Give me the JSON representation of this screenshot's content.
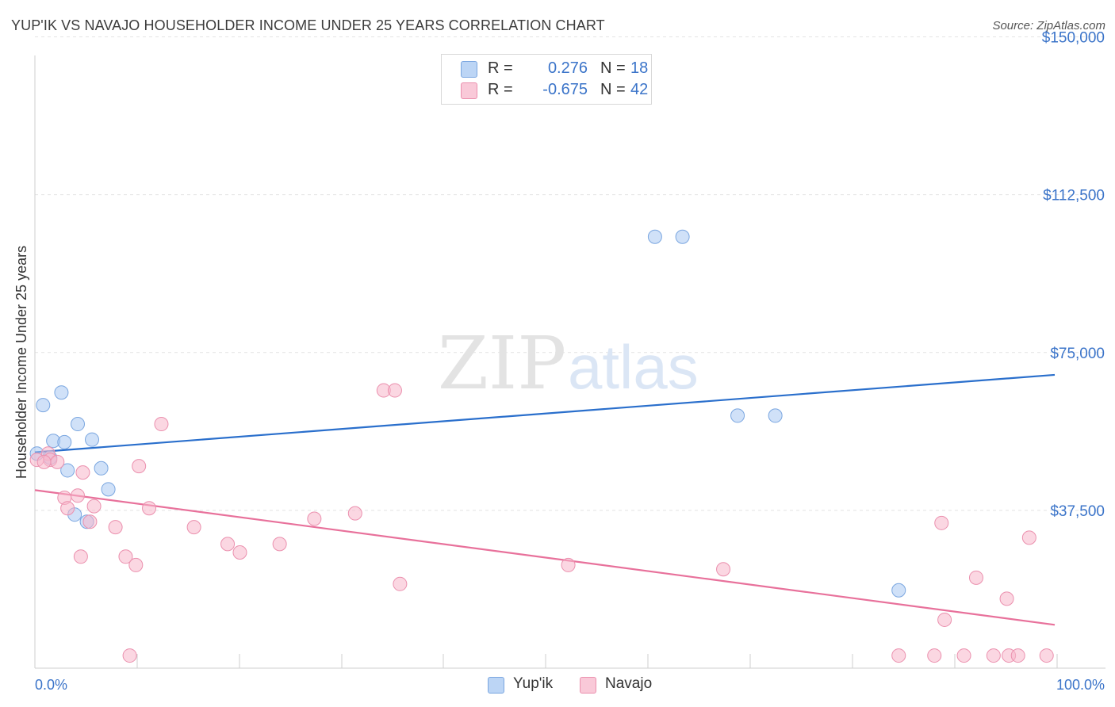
{
  "header": {
    "title": "YUP'IK VS NAVAJO HOUSEHOLDER INCOME UNDER 25 YEARS CORRELATION CHART",
    "source": "Source: ZipAtlas.com"
  },
  "watermark": {
    "zip": "ZIP",
    "atlas": "atlas"
  },
  "legend": {
    "rows": [
      {
        "r_label": "R =",
        "r_value": "0.276",
        "n_label": "N =",
        "n_value": "18",
        "color": "#a9c8f2"
      },
      {
        "r_label": "R =",
        "r_value": "-0.675",
        "n_label": "N =",
        "n_value": "42",
        "color": "#f7b7cb"
      }
    ]
  },
  "bottom_legend": [
    {
      "label": "Yup'ik",
      "color": "#a9c8f2"
    },
    {
      "label": "Navajo",
      "color": "#f7b7cb"
    }
  ],
  "chart_data": {
    "type": "scatter",
    "title": "YUP'IK VS NAVAJO HOUSEHOLDER INCOME UNDER 25 YEARS CORRELATION CHART",
    "xlabel": "",
    "ylabel": "Householder Income Under 25 years",
    "xlim": [
      0,
      100
    ],
    "ylim": [
      0,
      155000
    ],
    "x_tick_labels": [
      "0.0%",
      "100.0%"
    ],
    "y_ticks": [
      {
        "value": 150000,
        "label": "$150,000"
      },
      {
        "value": 112500,
        "label": "$112,500"
      },
      {
        "value": 75000,
        "label": "$75,000"
      },
      {
        "value": 37500,
        "label": "$37,500"
      }
    ],
    "grid": true,
    "legend_placement": "top-center",
    "series": [
      {
        "name": "Yup'ik",
        "color": "#a9c8f2",
        "stroke": "#7aa6e0",
        "line_color": "#2a6fcc",
        "points": [
          [
            0.2,
            51000
          ],
          [
            0.8,
            62500
          ],
          [
            1.5,
            50000
          ],
          [
            1.8,
            54000
          ],
          [
            2.6,
            65500
          ],
          [
            2.9,
            53700
          ],
          [
            3.2,
            47000
          ],
          [
            3.9,
            36500
          ],
          [
            4.2,
            58000
          ],
          [
            5.1,
            34800
          ],
          [
            5.6,
            54300
          ],
          [
            6.5,
            47500
          ],
          [
            7.2,
            42500
          ],
          [
            60.8,
            102500
          ],
          [
            63.5,
            102500
          ],
          [
            68.9,
            60000
          ],
          [
            72.6,
            60000
          ],
          [
            84.7,
            18500
          ]
        ],
        "trend": {
          "x0": 0,
          "y0": 51300,
          "x1": 100,
          "y1": 69700
        }
      },
      {
        "name": "Navajo",
        "color": "#f7b7cb",
        "stroke": "#eb90ae",
        "line_color": "#e8719b",
        "points": [
          [
            0.2,
            49500
          ],
          [
            1.3,
            51000
          ],
          [
            1.5,
            49500
          ],
          [
            2.2,
            49000
          ],
          [
            2.9,
            40500
          ],
          [
            3.2,
            38000
          ],
          [
            4.2,
            41000
          ],
          [
            4.7,
            46500
          ],
          [
            4.5,
            26500
          ],
          [
            5.4,
            34800
          ],
          [
            5.8,
            38500
          ],
          [
            7.9,
            33500
          ],
          [
            8.9,
            26500
          ],
          [
            9.3,
            3000
          ],
          [
            9.9,
            24500
          ],
          [
            10.2,
            48000
          ],
          [
            11.2,
            38000
          ],
          [
            12.4,
            58000
          ],
          [
            15.6,
            33500
          ],
          [
            18.9,
            29500
          ],
          [
            20.1,
            27500
          ],
          [
            24.0,
            29500
          ],
          [
            27.4,
            35500
          ],
          [
            31.4,
            36800
          ],
          [
            34.2,
            66000
          ],
          [
            35.3,
            66000
          ],
          [
            35.8,
            20000
          ],
          [
            52.3,
            24500
          ],
          [
            67.5,
            23500
          ],
          [
            84.7,
            3000
          ],
          [
            88.2,
            3000
          ],
          [
            88.9,
            34500
          ],
          [
            89.2,
            11500
          ],
          [
            91.1,
            3000
          ],
          [
            92.3,
            21500
          ],
          [
            94.0,
            3000
          ],
          [
            95.3,
            16500
          ],
          [
            95.5,
            3000
          ],
          [
            96.4,
            3000
          ],
          [
            97.5,
            31000
          ],
          [
            99.2,
            3000
          ],
          [
            0.9,
            49000
          ]
        ],
        "trend": {
          "x0": 0,
          "y0": 42300,
          "x1": 100,
          "y1": 10300
        }
      }
    ]
  }
}
